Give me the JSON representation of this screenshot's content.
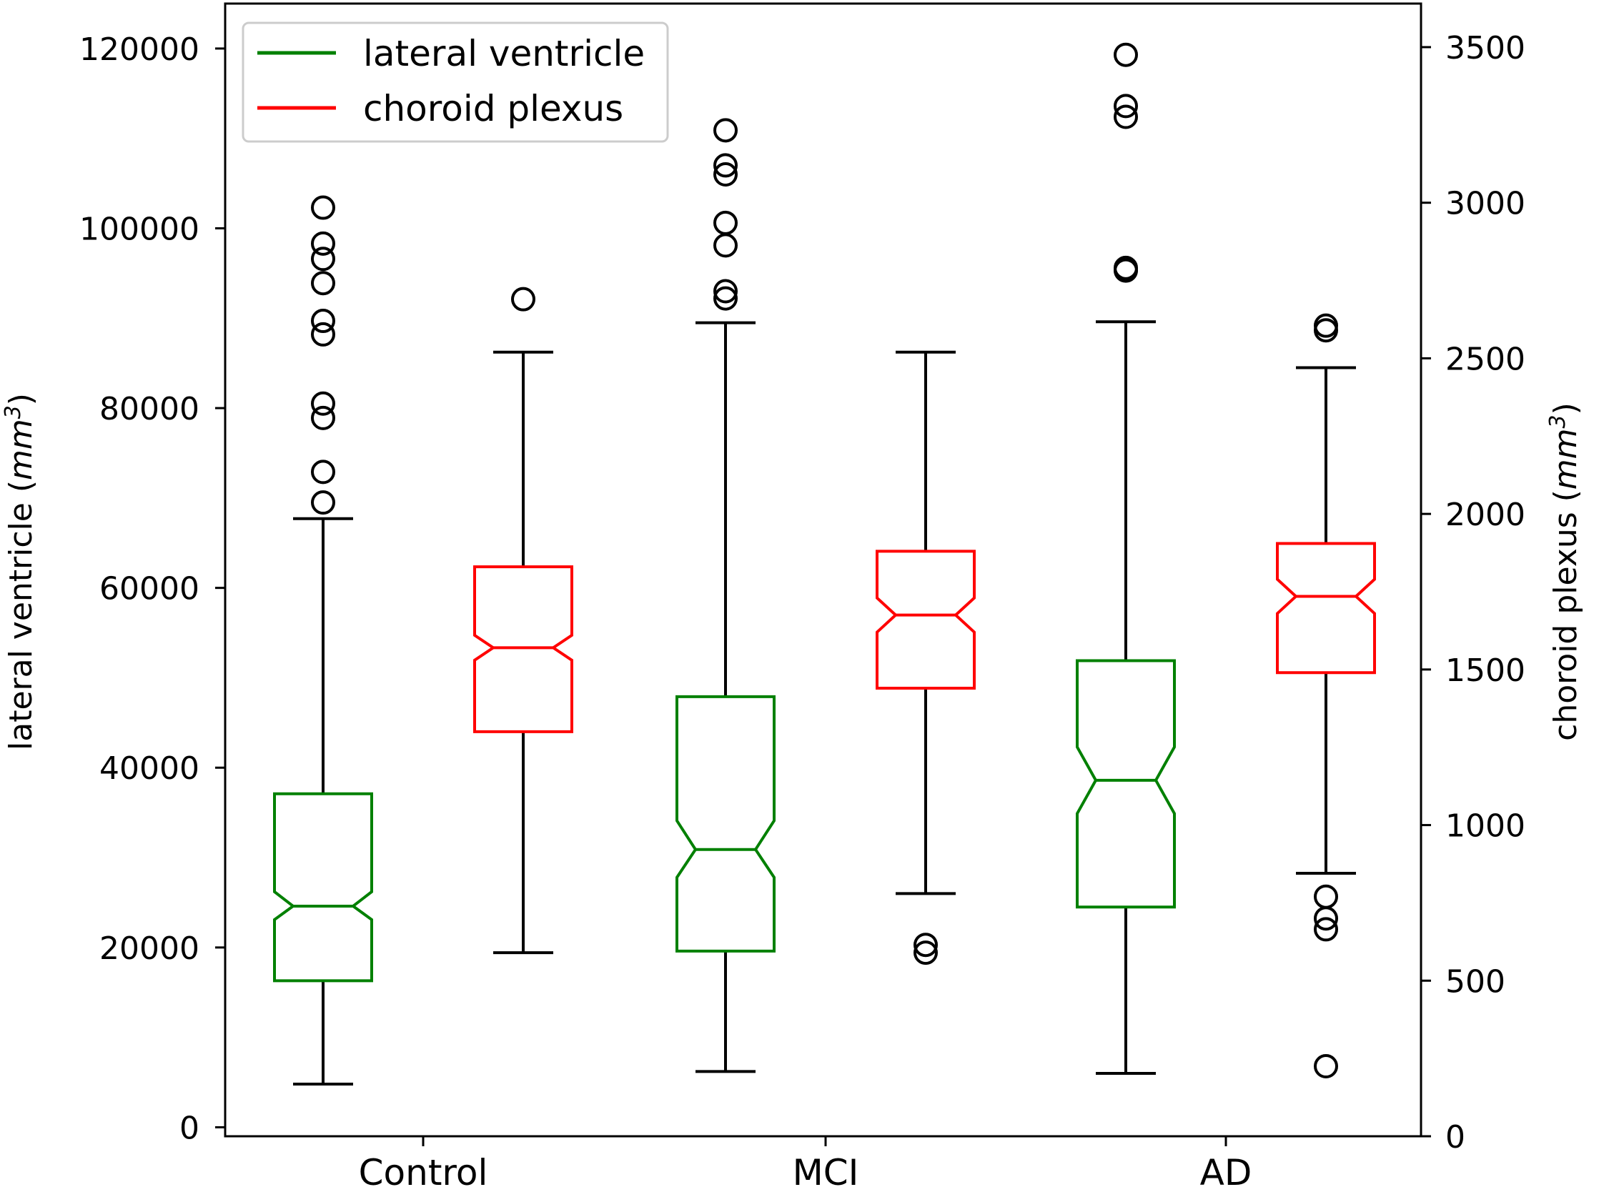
{
  "chart_data": {
    "type": "boxplot",
    "notched": true,
    "categories": [
      "Control",
      "MCI",
      "AD"
    ],
    "axes": {
      "left": {
        "label_prefix": "lateral ventricle (",
        "label_unit": "mm",
        "label_exp": "3",
        "label_suffix": ")",
        "ylim": [
          -1000,
          125000
        ],
        "ticks": [
          0,
          20000,
          40000,
          60000,
          80000,
          100000,
          120000
        ],
        "tick_labels": [
          "0",
          "20000",
          "40000",
          "60000",
          "80000",
          "100000",
          "120000"
        ]
      },
      "right": {
        "label_prefix": "choroid plexus (",
        "label_unit": "mm",
        "label_exp": "3",
        "label_suffix": ")",
        "ylim": [
          0,
          3640
        ],
        "ticks": [
          0,
          500,
          1000,
          1500,
          2000,
          2500,
          3000,
          3500
        ],
        "tick_labels": [
          "0",
          "500",
          "1000",
          "1500",
          "2000",
          "2500",
          "3000",
          "3500"
        ]
      }
    },
    "legend": {
      "position": "top-left",
      "entries": [
        {
          "label": "lateral ventricle",
          "color": "#008000"
        },
        {
          "label": "choroid plexus",
          "color": "#ff0000"
        }
      ]
    },
    "series": [
      {
        "name": "lateral ventricle",
        "axis": "left",
        "color": "#008000",
        "boxes": [
          {
            "category": "Control",
            "whisker_low": 4800,
            "q1": 16300,
            "notch_low": 23100,
            "median": 24600,
            "notch_high": 26200,
            "q3": 37100,
            "whisker_high": 67700,
            "outliers": [
              69500,
              72900,
              78900,
              80500,
              88200,
              89700,
              93900,
              96600,
              98300,
              102300
            ]
          },
          {
            "category": "MCI",
            "whisker_low": 6200,
            "q1": 19600,
            "notch_low": 27800,
            "median": 30900,
            "notch_high": 34100,
            "q3": 47900,
            "whisker_high": 89500,
            "outliers": [
              92200,
              93000,
              98100,
              100600,
              106000,
              107000,
              110900
            ]
          },
          {
            "category": "AD",
            "whisker_low": 6000,
            "q1": 24500,
            "notch_low": 34900,
            "median": 38600,
            "notch_high": 42300,
            "q3": 51900,
            "whisker_high": 89600,
            "outliers": [
              95300,
              95600,
              112400,
              113600,
              119300
            ]
          }
        ]
      },
      {
        "name": "choroid plexus",
        "axis": "right",
        "color": "#ff0000",
        "boxes": [
          {
            "category": "Control",
            "whisker_low": 590,
            "q1": 1300,
            "notch_low": 1530,
            "median": 1570,
            "notch_high": 1610,
            "q3": 1830,
            "whisker_high": 2520,
            "outliers": [
              2690
            ]
          },
          {
            "category": "MCI",
            "whisker_low": 780,
            "q1": 1440,
            "notch_low": 1620,
            "median": 1675,
            "notch_high": 1730,
            "q3": 1880,
            "whisker_high": 2520,
            "outliers": [
              590,
              615
            ]
          },
          {
            "category": "AD",
            "whisker_low": 845,
            "q1": 1490,
            "notch_low": 1680,
            "median": 1735,
            "notch_high": 1790,
            "q3": 1905,
            "whisker_high": 2470,
            "outliers": [
              225,
              665,
              700,
              770,
              2590,
              2605
            ]
          }
        ]
      }
    ]
  }
}
